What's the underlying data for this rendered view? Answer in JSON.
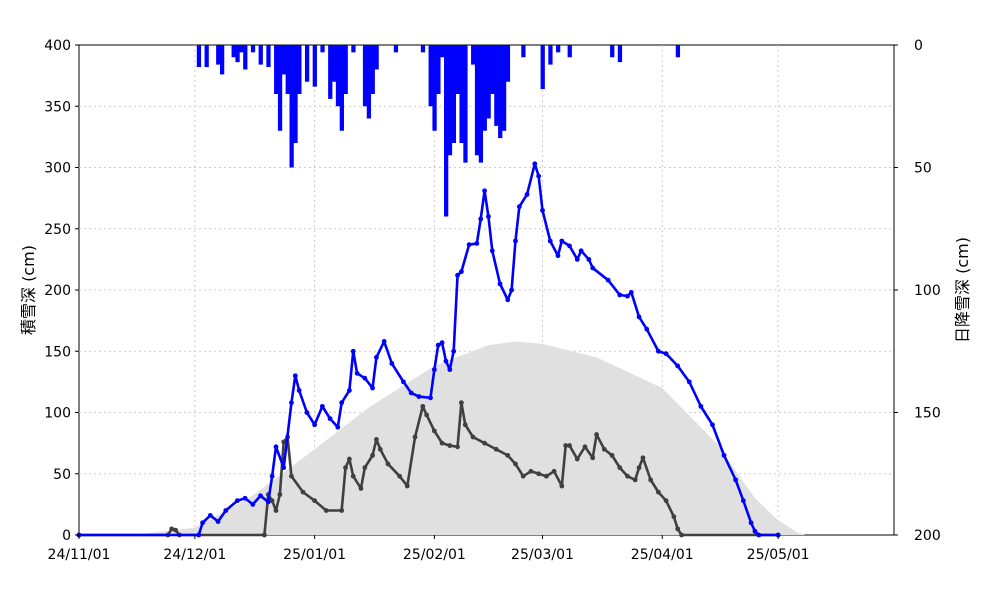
{
  "chart_data": {
    "type": "line",
    "x_start": "2024-11-01",
    "x_end": "2025-05-31",
    "x_ticks": [
      "24/11/01",
      "24/12/01",
      "25/01/01",
      "25/02/01",
      "25/03/01",
      "25/04/01",
      "25/05/01"
    ],
    "y_left": {
      "label": "積雪深 (cm)",
      "range": [
        0,
        400
      ],
      "ticks": [
        0,
        50,
        100,
        150,
        200,
        250,
        300,
        350,
        400
      ]
    },
    "y_right": {
      "label": "日降雪深 (cm)",
      "range": [
        0,
        200
      ],
      "inverted": true,
      "ticks": [
        0,
        50,
        100,
        150,
        200
      ]
    },
    "grid": true,
    "colors": {
      "snow_depth": "#0000ff",
      "snowfall": "#0000ff",
      "normal": "#e0e0e0",
      "dark_line": "#404040"
    },
    "snow_depth_points": [
      [
        "2024-11-01",
        0
      ],
      [
        "2024-12-02",
        0
      ],
      [
        "2024-12-03",
        10
      ],
      [
        "2024-12-05",
        16
      ],
      [
        "2024-12-07",
        11
      ],
      [
        "2024-12-09",
        20
      ],
      [
        "2024-12-12",
        28
      ],
      [
        "2024-12-14",
        30
      ],
      [
        "2024-12-16",
        25
      ],
      [
        "2024-12-18",
        32
      ],
      [
        "2024-12-20",
        27
      ],
      [
        "2024-12-21",
        48
      ],
      [
        "2024-12-22",
        72
      ],
      [
        "2024-12-24",
        55
      ],
      [
        "2024-12-26",
        108
      ],
      [
        "2024-12-27",
        130
      ],
      [
        "2024-12-28",
        118
      ],
      [
        "2024-12-30",
        100
      ],
      [
        "2025-01-01",
        90
      ],
      [
        "2025-01-03",
        105
      ],
      [
        "2025-01-05",
        95
      ],
      [
        "2025-01-07",
        88
      ],
      [
        "2025-01-08",
        108
      ],
      [
        "2025-01-10",
        118
      ],
      [
        "2025-01-11",
        150
      ],
      [
        "2025-01-12",
        132
      ],
      [
        "2025-01-14",
        128
      ],
      [
        "2025-01-16",
        120
      ],
      [
        "2025-01-17",
        145
      ],
      [
        "2025-01-19",
        158
      ],
      [
        "2025-01-21",
        140
      ],
      [
        "2025-01-24",
        125
      ],
      [
        "2025-01-26",
        116
      ],
      [
        "2025-01-28",
        113
      ],
      [
        "2025-01-31",
        112
      ],
      [
        "2025-02-01",
        135
      ],
      [
        "2025-02-02",
        155
      ],
      [
        "2025-02-03",
        157
      ],
      [
        "2025-02-04",
        142
      ],
      [
        "2025-02-05",
        135
      ],
      [
        "2025-02-06",
        150
      ],
      [
        "2025-02-07",
        212
      ],
      [
        "2025-02-08",
        215
      ],
      [
        "2025-02-10",
        237
      ],
      [
        "2025-02-12",
        238
      ],
      [
        "2025-02-13",
        258
      ],
      [
        "2025-02-14",
        281
      ],
      [
        "2025-02-15",
        260
      ],
      [
        "2025-02-16",
        232
      ],
      [
        "2025-02-18",
        205
      ],
      [
        "2025-02-20",
        192
      ],
      [
        "2025-02-21",
        200
      ],
      [
        "2025-02-22",
        240
      ],
      [
        "2025-02-23",
        268
      ],
      [
        "2025-02-25",
        278
      ],
      [
        "2025-02-27",
        303
      ],
      [
        "2025-02-28",
        293
      ],
      [
        "2025-03-01",
        265
      ],
      [
        "2025-03-03",
        240
      ],
      [
        "2025-03-05",
        228
      ],
      [
        "2025-03-06",
        240
      ],
      [
        "2025-03-08",
        236
      ],
      [
        "2025-03-10",
        225
      ],
      [
        "2025-03-11",
        232
      ],
      [
        "2025-03-13",
        225
      ],
      [
        "2025-03-14",
        218
      ],
      [
        "2025-03-18",
        208
      ],
      [
        "2025-03-21",
        196
      ],
      [
        "2025-03-23",
        195
      ],
      [
        "2025-03-24",
        198
      ],
      [
        "2025-03-26",
        178
      ],
      [
        "2025-03-28",
        168
      ],
      [
        "2025-03-31",
        150
      ],
      [
        "2025-04-02",
        148
      ],
      [
        "2025-04-05",
        138
      ],
      [
        "2025-04-08",
        125
      ],
      [
        "2025-04-11",
        105
      ],
      [
        "2025-04-14",
        90
      ],
      [
        "2025-04-17",
        65
      ],
      [
        "2025-04-20",
        45
      ],
      [
        "2025-04-22",
        28
      ],
      [
        "2025-04-24",
        10
      ],
      [
        "2025-04-25",
        3
      ],
      [
        "2025-04-26",
        0
      ],
      [
        "2025-05-01",
        0
      ]
    ],
    "dark_line_points": [
      [
        "2024-11-01",
        0
      ],
      [
        "2024-11-24",
        0
      ],
      [
        "2024-11-25",
        5
      ],
      [
        "2024-11-26",
        4
      ],
      [
        "2024-11-27",
        0
      ],
      [
        "2024-12-19",
        0
      ],
      [
        "2024-12-20",
        33
      ],
      [
        "2024-12-21",
        28
      ],
      [
        "2024-12-22",
        20
      ],
      [
        "2024-12-23",
        33
      ],
      [
        "2024-12-24",
        76
      ],
      [
        "2024-12-25",
        80
      ],
      [
        "2024-12-26",
        48
      ],
      [
        "2024-12-29",
        35
      ],
      [
        "2025-01-01",
        28
      ],
      [
        "2025-01-04",
        20
      ],
      [
        "2025-01-08",
        20
      ],
      [
        "2025-01-09",
        55
      ],
      [
        "2025-01-10",
        62
      ],
      [
        "2025-01-11",
        48
      ],
      [
        "2025-01-13",
        38
      ],
      [
        "2025-01-14",
        55
      ],
      [
        "2025-01-16",
        65
      ],
      [
        "2025-01-17",
        78
      ],
      [
        "2025-01-18",
        70
      ],
      [
        "2025-01-20",
        58
      ],
      [
        "2025-01-23",
        48
      ],
      [
        "2025-01-25",
        40
      ],
      [
        "2025-01-27",
        80
      ],
      [
        "2025-01-29",
        105
      ],
      [
        "2025-01-30",
        98
      ],
      [
        "2025-02-01",
        85
      ],
      [
        "2025-02-03",
        75
      ],
      [
        "2025-02-05",
        73
      ],
      [
        "2025-02-07",
        72
      ],
      [
        "2025-02-08",
        108
      ],
      [
        "2025-02-09",
        90
      ],
      [
        "2025-02-11",
        80
      ],
      [
        "2025-02-14",
        75
      ],
      [
        "2025-02-17",
        70
      ],
      [
        "2025-02-20",
        65
      ],
      [
        "2025-02-22",
        58
      ],
      [
        "2025-02-24",
        48
      ],
      [
        "2025-02-26",
        52
      ],
      [
        "2025-02-28",
        50
      ],
      [
        "2025-03-02",
        48
      ],
      [
        "2025-03-04",
        52
      ],
      [
        "2025-03-06",
        40
      ],
      [
        "2025-03-07",
        73
      ],
      [
        "2025-03-08",
        73
      ],
      [
        "2025-03-10",
        62
      ],
      [
        "2025-03-12",
        72
      ],
      [
        "2025-03-14",
        63
      ],
      [
        "2025-03-15",
        82
      ],
      [
        "2025-03-17",
        70
      ],
      [
        "2025-03-19",
        65
      ],
      [
        "2025-03-21",
        55
      ],
      [
        "2025-03-23",
        48
      ],
      [
        "2025-03-25",
        45
      ],
      [
        "2025-03-26",
        55
      ],
      [
        "2025-03-27",
        63
      ],
      [
        "2025-03-29",
        45
      ],
      [
        "2025-03-31",
        35
      ],
      [
        "2025-04-02",
        28
      ],
      [
        "2025-04-04",
        15
      ],
      [
        "2025-04-05",
        5
      ],
      [
        "2025-04-06",
        0
      ],
      [
        "2025-05-01",
        0
      ]
    ],
    "normal_points": [
      [
        "2024-11-15",
        0
      ],
      [
        "2024-12-01",
        6
      ],
      [
        "2024-12-15",
        30
      ],
      [
        "2025-01-01",
        70
      ],
      [
        "2025-01-15",
        104
      ],
      [
        "2025-02-01",
        138
      ],
      [
        "2025-02-15",
        155
      ],
      [
        "2025-02-22",
        158
      ],
      [
        "2025-03-01",
        156
      ],
      [
        "2025-03-15",
        145
      ],
      [
        "2025-04-01",
        120
      ],
      [
        "2025-04-15",
        75
      ],
      [
        "2025-04-25",
        30
      ],
      [
        "2025-05-01",
        12
      ],
      [
        "2025-05-06",
        2
      ],
      [
        "2025-05-08",
        0
      ]
    ],
    "daily_snowfall": [
      [
        "2024-12-02",
        9
      ],
      [
        "2024-12-04",
        9
      ],
      [
        "2024-12-07",
        8
      ],
      [
        "2024-12-08",
        12
      ],
      [
        "2024-12-11",
        5
      ],
      [
        "2024-12-12",
        7
      ],
      [
        "2024-12-13",
        3
      ],
      [
        "2024-12-14",
        10
      ],
      [
        "2024-12-16",
        3
      ],
      [
        "2024-12-18",
        8
      ],
      [
        "2024-12-20",
        9
      ],
      [
        "2024-12-22",
        20
      ],
      [
        "2024-12-23",
        35
      ],
      [
        "2024-12-24",
        12
      ],
      [
        "2024-12-25",
        20
      ],
      [
        "2024-12-26",
        50
      ],
      [
        "2024-12-27",
        40
      ],
      [
        "2024-12-28",
        20
      ],
      [
        "2024-12-30",
        15
      ],
      [
        "2025-01-01",
        17
      ],
      [
        "2025-01-03",
        3
      ],
      [
        "2025-01-05",
        22
      ],
      [
        "2025-01-06",
        15
      ],
      [
        "2025-01-07",
        25
      ],
      [
        "2025-01-08",
        35
      ],
      [
        "2025-01-09",
        20
      ],
      [
        "2025-01-11",
        3
      ],
      [
        "2025-01-14",
        25
      ],
      [
        "2025-01-15",
        30
      ],
      [
        "2025-01-16",
        20
      ],
      [
        "2025-01-17",
        10
      ],
      [
        "2025-01-22",
        3
      ],
      [
        "2025-01-29",
        3
      ],
      [
        "2025-01-31",
        25
      ],
      [
        "2025-02-01",
        35
      ],
      [
        "2025-02-02",
        20
      ],
      [
        "2025-02-03",
        5
      ],
      [
        "2025-02-04",
        70
      ],
      [
        "2025-02-05",
        45
      ],
      [
        "2025-02-06",
        40
      ],
      [
        "2025-02-07",
        20
      ],
      [
        "2025-02-08",
        40
      ],
      [
        "2025-02-09",
        48
      ],
      [
        "2025-02-11",
        8
      ],
      [
        "2025-02-12",
        45
      ],
      [
        "2025-02-13",
        48
      ],
      [
        "2025-02-14",
        35
      ],
      [
        "2025-02-15",
        30
      ],
      [
        "2025-02-16",
        20
      ],
      [
        "2025-02-17",
        33
      ],
      [
        "2025-02-18",
        38
      ],
      [
        "2025-02-19",
        35
      ],
      [
        "2025-02-20",
        15
      ],
      [
        "2025-02-24",
        5
      ],
      [
        "2025-03-01",
        18
      ],
      [
        "2025-03-03",
        8
      ],
      [
        "2025-03-05",
        3
      ],
      [
        "2025-03-08",
        5
      ],
      [
        "2025-03-19",
        5
      ],
      [
        "2025-03-21",
        7
      ],
      [
        "2025-04-05",
        5
      ]
    ]
  }
}
